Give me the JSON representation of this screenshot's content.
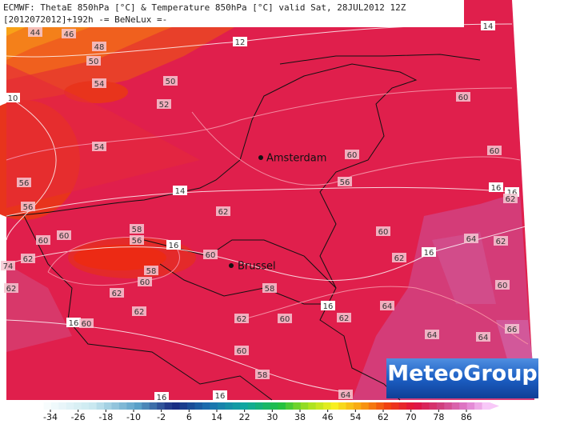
{
  "header": {
    "line1": "ECMWF: ThetaE 850hPa [°C] & Temperature 850hPa [°C] valid Sat, 28JUL2012 12Z",
    "line2": "[2012072012]+192h -= BeNeLux =-"
  },
  "cities": [
    "Amsterdam",
    "Brussel"
  ],
  "logo": "MeteoGroup",
  "contour_labels": [
    44,
    46,
    48,
    50,
    54,
    50,
    52,
    54,
    12,
    10,
    14,
    60,
    60,
    60,
    56,
    14,
    56,
    56,
    62,
    16,
    16,
    62,
    60,
    60,
    58,
    56,
    16,
    60,
    62,
    74,
    58,
    60,
    62,
    62,
    62,
    60,
    62,
    16,
    64,
    62,
    60,
    58,
    16,
    64,
    62,
    60,
    62,
    16,
    60,
    64,
    64,
    66,
    60,
    58,
    16,
    16,
    64
  ],
  "colorbar_labels": [
    -34,
    -26,
    -18,
    -10,
    -2,
    6,
    14,
    22,
    30,
    38,
    46,
    54,
    62,
    70,
    78,
    86
  ]
}
